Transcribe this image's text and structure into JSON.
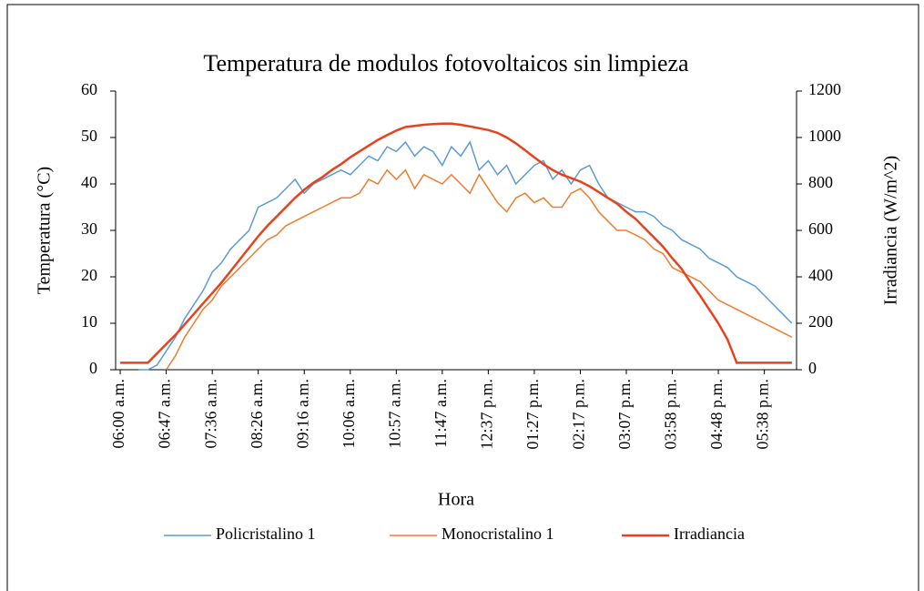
{
  "chart_data": {
    "type": "line",
    "title": "Temperatura de modulos fotovoltaicos sin limpieza",
    "x_label": "Hora",
    "y_label": "Temperatura (°C)",
    "y2_label": "Irradiancia (W/m^2)",
    "categories": [
      "06:00 a.m.",
      null,
      null,
      null,
      null,
      "06:47 a.m.",
      null,
      null,
      null,
      null,
      "07:36 a.m.",
      null,
      null,
      null,
      null,
      "08:26 a.m.",
      null,
      null,
      null,
      null,
      "09:16 a.m.",
      null,
      null,
      null,
      null,
      "10:06 a.m.",
      null,
      null,
      null,
      null,
      "10:57 a.m.",
      null,
      null,
      null,
      null,
      "11:47 a.m.",
      null,
      null,
      null,
      null,
      "12:37 p.m.",
      null,
      null,
      null,
      null,
      "01:27 p.m.",
      null,
      null,
      null,
      null,
      "02:17 p.m.",
      null,
      null,
      null,
      null,
      "03:07 p.m.",
      null,
      null,
      null,
      null,
      "03:58 p.m.",
      null,
      null,
      null,
      null,
      "04:48 p.m.",
      null,
      null,
      null,
      null,
      "05:38 p.m.",
      null,
      null,
      null
    ],
    "series": [
      {
        "name": "Policristalino 1",
        "color": "#5b9bd5",
        "axis": "y",
        "values": [
          null,
          null,
          0,
          0,
          1,
          4,
          7,
          11,
          14,
          17,
          21,
          23,
          26,
          28,
          30,
          35,
          36,
          37,
          39,
          41,
          38,
          40,
          41,
          42,
          43,
          42,
          44,
          46,
          45,
          48,
          47,
          49,
          46,
          48,
          47,
          44,
          48,
          46,
          49,
          43,
          45,
          42,
          44,
          40,
          42,
          44,
          45,
          41,
          43,
          40,
          43,
          44,
          40,
          37,
          36,
          35,
          34,
          34,
          33,
          31,
          30,
          28,
          27,
          26,
          24,
          23,
          22,
          20,
          19,
          18,
          16,
          14,
          12,
          10
        ]
      },
      {
        "name": "Monocristalino 1",
        "color": "#ed7d31",
        "axis": "y",
        "values": [
          null,
          null,
          null,
          null,
          null,
          0,
          3,
          7,
          10,
          13,
          15,
          18,
          20,
          22,
          24,
          26,
          28,
          29,
          31,
          32,
          33,
          34,
          35,
          36,
          37,
          37,
          38,
          41,
          40,
          43,
          41,
          43,
          39,
          42,
          41,
          40,
          42,
          40,
          38,
          42,
          39,
          36,
          34,
          37,
          38,
          36,
          37,
          35,
          35,
          38,
          39,
          37,
          34,
          32,
          30,
          30,
          29,
          28,
          26,
          25,
          22,
          21,
          20,
          19,
          17,
          15,
          14,
          13,
          12,
          11,
          10,
          9,
          8,
          7
        ]
      },
      {
        "name": "Irradiancia",
        "color": "#e8421c",
        "axis": "y2",
        "values": [
          30,
          30,
          30,
          30,
          70,
          110,
          150,
          195,
          240,
          285,
          330,
          375,
          425,
          475,
          525,
          575,
          620,
          660,
          700,
          740,
          775,
          805,
          830,
          860,
          885,
          915,
          940,
          965,
          990,
          1010,
          1030,
          1045,
          1050,
          1055,
          1058,
          1060,
          1060,
          1055,
          1048,
          1040,
          1032,
          1020,
          1000,
          975,
          945,
          915,
          885,
          860,
          840,
          825,
          810,
          790,
          765,
          740,
          715,
          680,
          650,
          610,
          570,
          530,
          480,
          435,
          375,
          320,
          260,
          200,
          130,
          30,
          30,
          30,
          30,
          30,
          30,
          30
        ]
      }
    ],
    "ylim": [
      0,
      60
    ],
    "yticks": [
      0,
      10,
      20,
      30,
      40,
      50,
      60
    ],
    "y2lim": [
      0,
      1200
    ],
    "y2ticks": [
      0,
      200,
      400,
      600,
      800,
      1000,
      1200
    ],
    "legend": "bottom"
  }
}
